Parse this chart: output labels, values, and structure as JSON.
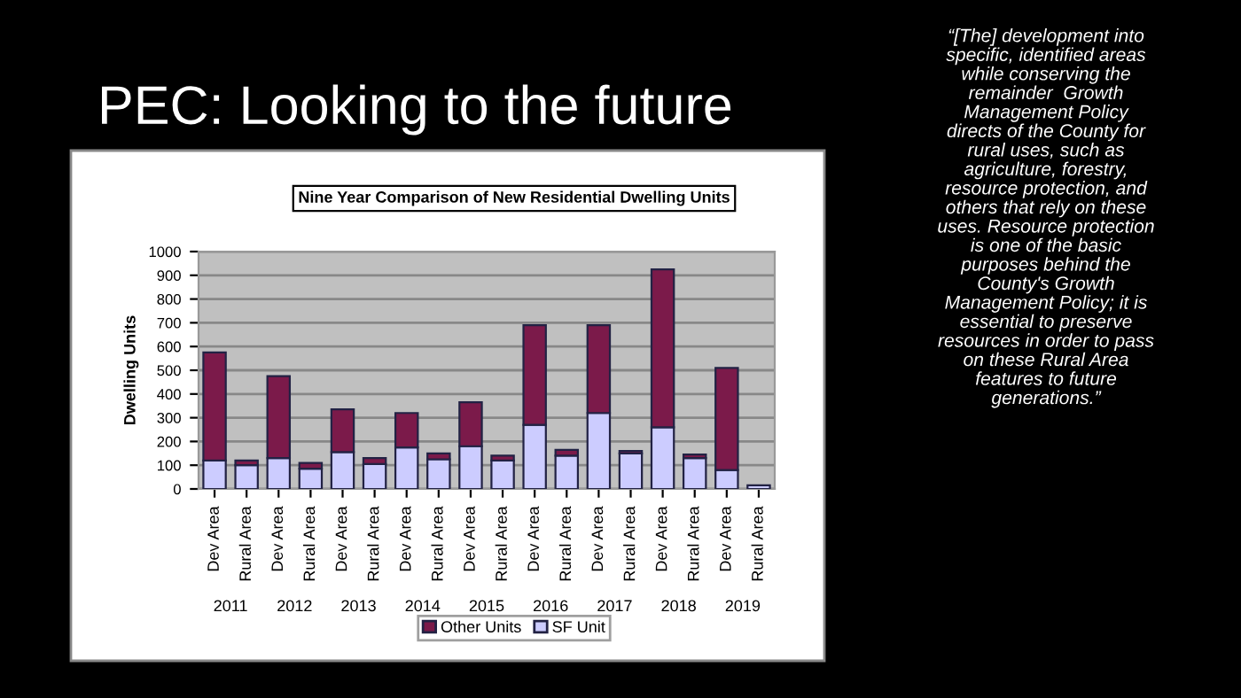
{
  "chart_data": {
    "type": "bar",
    "stacked": true,
    "title": "Nine Year Comparison of New Residential Dwelling Units",
    "ylabel": "Dwelling Units",
    "categories": [
      "Dev Area",
      "Rural Area",
      "Dev Area",
      "Rural Area",
      "Dev Area",
      "Rural Area",
      "Dev Area",
      "Rural Area",
      "Dev Area",
      "Rural Area",
      "Dev Area",
      "Rural Area",
      "Dev Area",
      "Rural Area",
      "Dev Area",
      "Rural Area",
      "Dev Area",
      "Rural Area"
    ],
    "series": [
      {
        "name": "SF Unit",
        "color": "#ccccff",
        "values": [
          120,
          100,
          130,
          85,
          155,
          105,
          175,
          125,
          180,
          120,
          270,
          140,
          320,
          150,
          260,
          130,
          80,
          15
        ]
      },
      {
        "name": "Other Units",
        "color": "#7b1a4a",
        "values": [
          455,
          20,
          345,
          25,
          180,
          25,
          145,
          25,
          185,
          20,
          420,
          25,
          370,
          10,
          665,
          15,
          430,
          0
        ]
      }
    ],
    "ylim": [
      0,
      1000
    ],
    "yticks": [
      0,
      100,
      200,
      300,
      400,
      500,
      600,
      700,
      800,
      900,
      1000
    ],
    "grid": "y",
    "legend": "bottom",
    "annotations": [
      "PEC: Looking to the future",
      "“[The] development into\nspecific, identified areas\nwhile conserving the\nremainder  Growth\nManagement Policy\ndirects of the County for\nrural uses, such as\nagriculture, forestry,\nresource protection, and\nothers that rely on these\nuses. Resource protection\nis one of the basic\npurposes behind the\nCounty's Growth\nManagement Policy; it is\nessential to preserve\nresources in order to pass\non these Rural Area\nfeatures to future\ngenerations.”",
      "2011",
      "2012",
      "2013",
      "2014",
      "2015",
      "2016",
      "2017",
      "2018",
      "2019"
    ]
  }
}
